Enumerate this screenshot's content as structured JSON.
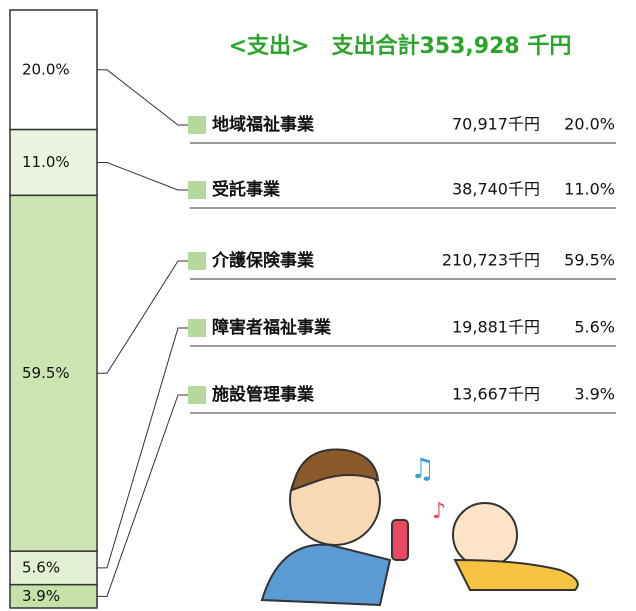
{
  "chart_data": {
    "type": "stacked-bar",
    "title": "<支出>　支出合計353,928 千円",
    "categories": [
      "地域福祉事業",
      "受託事業",
      "介護保険事業",
      "障害者福祉事業",
      "施設管理事業"
    ],
    "values": [
      20.0,
      11.0,
      59.5,
      5.6,
      3.9
    ],
    "value_labels": [
      "20.0%",
      "11.0%",
      "59.5%",
      "5.6%",
      "3.9%"
    ],
    "amounts": [
      70917,
      38740,
      210723,
      19881,
      13667
    ],
    "amount_labels": [
      "70,917千円",
      "38,740千円",
      "210,723千円",
      "19,881千円",
      "13,667千円"
    ],
    "colors": [
      "#ffffff",
      "#eaf4df",
      "#cde5b3",
      "#e3f0d3",
      "#c6e2a8"
    ],
    "marker_color": "#b5d99a",
    "title_color": "#2aa52a",
    "ylim": [
      0,
      100
    ]
  }
}
